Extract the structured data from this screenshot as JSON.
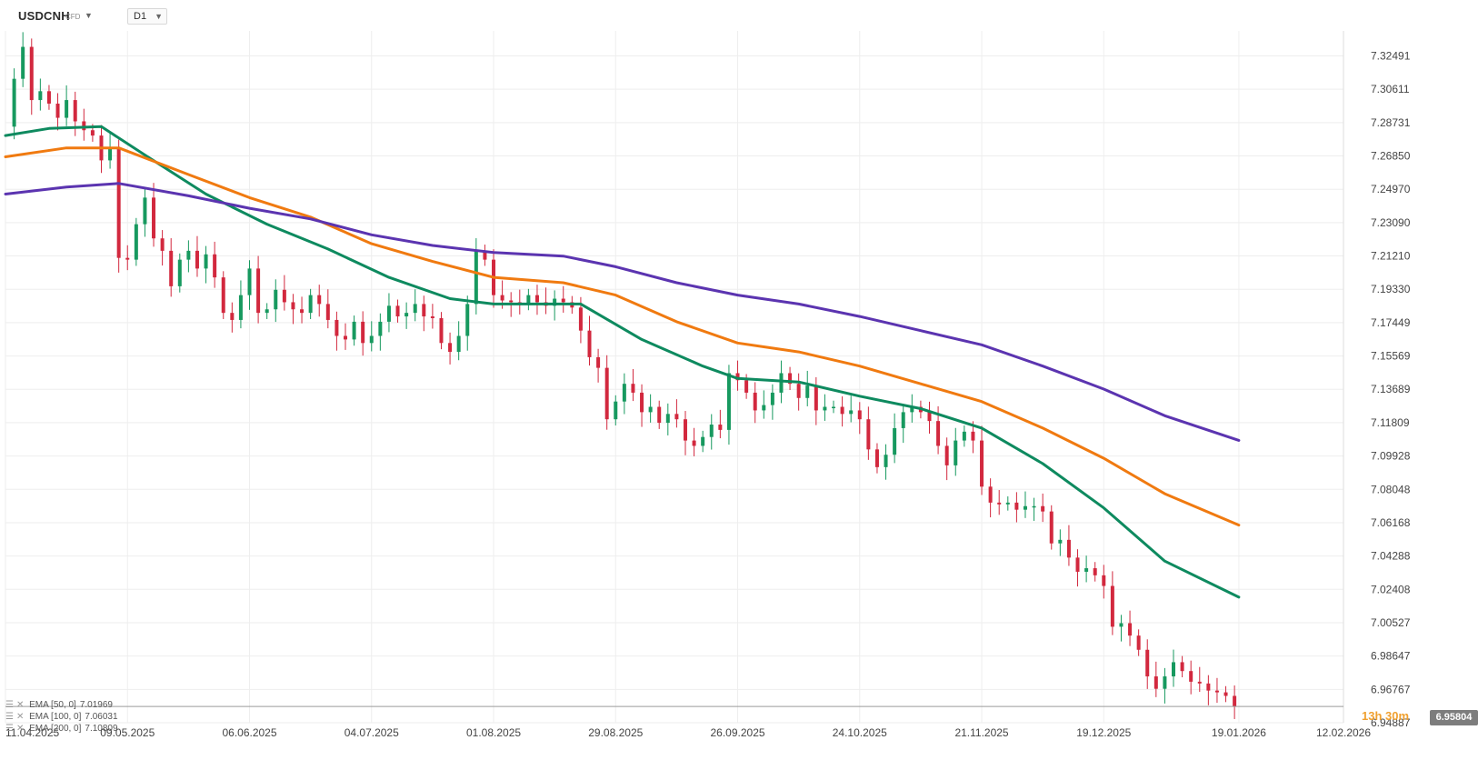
{
  "header": {
    "symbol": "USDCNH",
    "instrument_type": "CFD",
    "timeframe": "D1"
  },
  "countdown": "13h 30m",
  "current_price_label": "6.95804",
  "indicators": [
    {
      "label": "EMA [50, 0]",
      "value": "7.01969",
      "color": "#0e8a5f"
    },
    {
      "label": "EMA [100, 0]",
      "value": "7.06031",
      "color": "#f07a10"
    },
    {
      "label": "EMA [200, 0]",
      "value": "7.10809",
      "color": "#5b34b0"
    }
  ],
  "chart_data": {
    "type": "candlestick",
    "title": "",
    "xlabel": "",
    "ylabel": "",
    "ylim": [
      6.94887,
      7.339
    ],
    "xlim": [
      "2025-04-11",
      "2026-02-12"
    ],
    "x_tick_labels": [
      "11.04.2025",
      "09.05.2025",
      "06.06.2025",
      "04.07.2025",
      "01.08.2025",
      "29.08.2025",
      "26.09.2025",
      "24.10.2025",
      "21.11.2025",
      "19.12.2025",
      "19.01.2026",
      "12.02.2026"
    ],
    "x_tick_dates": [
      "2025-04-11",
      "2025-05-09",
      "2025-06-06",
      "2025-07-04",
      "2025-08-01",
      "2025-08-29",
      "2025-09-26",
      "2025-10-24",
      "2025-11-21",
      "2025-12-19",
      "2026-01-19",
      "2026-02-12"
    ],
    "y_tick_labels": [
      "7.32491",
      "7.30611",
      "7.28731",
      "7.26850",
      "7.24970",
      "7.23090",
      "7.21210",
      "7.19330",
      "7.17449",
      "7.15569",
      "7.13689",
      "7.11809",
      "7.09928",
      "7.08048",
      "7.06168",
      "7.04288",
      "7.02408",
      "7.00527",
      "6.98647",
      "6.96767",
      "6.94887"
    ],
    "grid": true,
    "last_price": 6.95804,
    "ohlc_close_path": [
      [
        "2025-04-11",
        7.285
      ],
      [
        "2025-04-13",
        7.312
      ],
      [
        "2025-04-15",
        7.33
      ],
      [
        "2025-04-17",
        7.3
      ],
      [
        "2025-04-19",
        7.305
      ],
      [
        "2025-04-21",
        7.298
      ],
      [
        "2025-04-23",
        7.29
      ],
      [
        "2025-04-25",
        7.3
      ],
      [
        "2025-04-27",
        7.288
      ],
      [
        "2025-04-29",
        7.283
      ],
      [
        "2025-05-01",
        7.28
      ],
      [
        "2025-05-03",
        7.266
      ],
      [
        "2025-05-05",
        7.273
      ],
      [
        "2025-05-07",
        7.211
      ],
      [
        "2025-05-09",
        7.21
      ],
      [
        "2025-05-11",
        7.23
      ],
      [
        "2025-05-13",
        7.245
      ],
      [
        "2025-05-15",
        7.222
      ],
      [
        "2025-05-17",
        7.215
      ],
      [
        "2025-05-19",
        7.195
      ],
      [
        "2025-05-21",
        7.21
      ],
      [
        "2025-05-23",
        7.215
      ],
      [
        "2025-05-25",
        7.205
      ],
      [
        "2025-05-27",
        7.213
      ],
      [
        "2025-05-29",
        7.2
      ],
      [
        "2025-05-31",
        7.18
      ],
      [
        "2025-06-02",
        7.176
      ],
      [
        "2025-06-04",
        7.19
      ],
      [
        "2025-06-06",
        7.205
      ],
      [
        "2025-06-08",
        7.18
      ],
      [
        "2025-06-10",
        7.182
      ],
      [
        "2025-06-12",
        7.193
      ],
      [
        "2025-06-14",
        7.186
      ],
      [
        "2025-06-16",
        7.182
      ],
      [
        "2025-06-18",
        7.18
      ],
      [
        "2025-06-20",
        7.19
      ],
      [
        "2025-06-22",
        7.185
      ],
      [
        "2025-06-24",
        7.176
      ],
      [
        "2025-06-26",
        7.167
      ],
      [
        "2025-06-28",
        7.165
      ],
      [
        "2025-06-30",
        7.175
      ],
      [
        "2025-07-02",
        7.163
      ],
      [
        "2025-07-04",
        7.167
      ],
      [
        "2025-07-06",
        7.175
      ],
      [
        "2025-07-08",
        7.184
      ],
      [
        "2025-07-10",
        7.178
      ],
      [
        "2025-07-12",
        7.18
      ],
      [
        "2025-07-14",
        7.185
      ],
      [
        "2025-07-16",
        7.178
      ],
      [
        "2025-07-18",
        7.177
      ],
      [
        "2025-07-20",
        7.163
      ],
      [
        "2025-07-22",
        7.158
      ],
      [
        "2025-07-24",
        7.167
      ],
      [
        "2025-07-26",
        7.185
      ],
      [
        "2025-07-28",
        7.215
      ],
      [
        "2025-07-30",
        7.21
      ],
      [
        "2025-08-01",
        7.19
      ],
      [
        "2025-08-03",
        7.187
      ],
      [
        "2025-08-05",
        7.186
      ],
      [
        "2025-08-07",
        7.185
      ],
      [
        "2025-08-09",
        7.19
      ],
      [
        "2025-08-11",
        7.186
      ],
      [
        "2025-08-13",
        7.184
      ],
      [
        "2025-08-15",
        7.188
      ],
      [
        "2025-08-17",
        7.186
      ],
      [
        "2025-08-19",
        7.183
      ],
      [
        "2025-08-21",
        7.17
      ],
      [
        "2025-08-23",
        7.155
      ],
      [
        "2025-08-25",
        7.149
      ],
      [
        "2025-08-27",
        7.12
      ],
      [
        "2025-08-29",
        7.13
      ],
      [
        "2025-08-31",
        7.14
      ],
      [
        "2025-09-02",
        7.135
      ],
      [
        "2025-09-04",
        7.124
      ],
      [
        "2025-09-06",
        7.127
      ],
      [
        "2025-09-08",
        7.118
      ],
      [
        "2025-09-10",
        7.123
      ],
      [
        "2025-09-12",
        7.12
      ],
      [
        "2025-09-14",
        7.108
      ],
      [
        "2025-09-16",
        7.105
      ],
      [
        "2025-09-18",
        7.11
      ],
      [
        "2025-09-20",
        7.117
      ],
      [
        "2025-09-22",
        7.114
      ],
      [
        "2025-09-24",
        7.146
      ],
      [
        "2025-09-26",
        7.142
      ],
      [
        "2025-09-28",
        7.135
      ],
      [
        "2025-09-30",
        7.125
      ],
      [
        "2025-10-02",
        7.128
      ],
      [
        "2025-10-04",
        7.135
      ],
      [
        "2025-10-06",
        7.146
      ],
      [
        "2025-10-08",
        7.14
      ],
      [
        "2025-10-10",
        7.132
      ],
      [
        "2025-10-12",
        7.139
      ],
      [
        "2025-10-14",
        7.125
      ],
      [
        "2025-10-16",
        7.127
      ],
      [
        "2025-10-18",
        7.127
      ],
      [
        "2025-10-20",
        7.123
      ],
      [
        "2025-10-22",
        7.125
      ],
      [
        "2025-10-24",
        7.12
      ],
      [
        "2025-10-26",
        7.103
      ],
      [
        "2025-10-28",
        7.093
      ],
      [
        "2025-10-30",
        7.1
      ],
      [
        "2025-11-01",
        7.115
      ],
      [
        "2025-11-03",
        7.124
      ],
      [
        "2025-11-05",
        7.127
      ],
      [
        "2025-11-07",
        7.124
      ],
      [
        "2025-11-09",
        7.119
      ],
      [
        "2025-11-11",
        7.105
      ],
      [
        "2025-11-13",
        7.094
      ],
      [
        "2025-11-15",
        7.108
      ],
      [
        "2025-11-17",
        7.113
      ],
      [
        "2025-11-19",
        7.108
      ],
      [
        "2025-11-21",
        7.082
      ],
      [
        "2025-11-23",
        7.073
      ],
      [
        "2025-11-25",
        7.072
      ],
      [
        "2025-11-27",
        7.073
      ],
      [
        "2025-11-29",
        7.069
      ],
      [
        "2025-12-01",
        7.071
      ],
      [
        "2025-12-03",
        7.071
      ],
      [
        "2025-12-05",
        7.068
      ],
      [
        "2025-12-07",
        7.05
      ],
      [
        "2025-12-09",
        7.052
      ],
      [
        "2025-12-11",
        7.042
      ],
      [
        "2025-12-13",
        7.034
      ],
      [
        "2025-12-15",
        7.036
      ],
      [
        "2025-12-17",
        7.032
      ],
      [
        "2025-12-19",
        7.026
      ],
      [
        "2025-12-21",
        7.003
      ],
      [
        "2025-12-23",
        7.005
      ],
      [
        "2025-12-25",
        6.998
      ],
      [
        "2025-12-27",
        6.99
      ],
      [
        "2025-12-29",
        6.975
      ],
      [
        "2025-12-31",
        6.968
      ],
      [
        "2026-01-02",
        6.975
      ],
      [
        "2026-01-04",
        6.983
      ],
      [
        "2026-01-06",
        6.978
      ],
      [
        "2026-01-08",
        6.972
      ],
      [
        "2026-01-10",
        6.971
      ],
      [
        "2026-01-12",
        6.967
      ],
      [
        "2026-01-14",
        6.966
      ],
      [
        "2026-01-16",
        6.964
      ],
      [
        "2026-01-18",
        6.95804
      ]
    ],
    "series": [
      {
        "name": "EMA [50, 0]",
        "color": "#0e8a5f",
        "points": [
          [
            "2025-04-11",
            7.28
          ],
          [
            "2025-04-21",
            7.284
          ],
          [
            "2025-05-03",
            7.285
          ],
          [
            "2025-05-13",
            7.269
          ],
          [
            "2025-05-27",
            7.247
          ],
          [
            "2025-06-10",
            7.23
          ],
          [
            "2025-06-24",
            7.216
          ],
          [
            "2025-07-08",
            7.2
          ],
          [
            "2025-07-22",
            7.188
          ],
          [
            "2025-08-01",
            7.185
          ],
          [
            "2025-08-21",
            7.185
          ],
          [
            "2025-09-04",
            7.165
          ],
          [
            "2025-09-18",
            7.15
          ],
          [
            "2025-09-26",
            7.143
          ],
          [
            "2025-10-10",
            7.141
          ],
          [
            "2025-10-24",
            7.133
          ],
          [
            "2025-11-07",
            7.126
          ],
          [
            "2025-11-21",
            7.115
          ],
          [
            "2025-12-05",
            7.095
          ],
          [
            "2025-12-19",
            7.07
          ],
          [
            "2026-01-02",
            7.04
          ],
          [
            "2026-01-19",
            7.01969
          ]
        ]
      },
      {
        "name": "EMA [100, 0]",
        "color": "#f07a10",
        "points": [
          [
            "2025-04-11",
            7.268
          ],
          [
            "2025-04-25",
            7.273
          ],
          [
            "2025-05-07",
            7.273
          ],
          [
            "2025-05-23",
            7.258
          ],
          [
            "2025-06-06",
            7.245
          ],
          [
            "2025-06-20",
            7.234
          ],
          [
            "2025-07-04",
            7.219
          ],
          [
            "2025-07-18",
            7.209
          ],
          [
            "2025-08-01",
            7.2
          ],
          [
            "2025-08-17",
            7.197
          ],
          [
            "2025-08-29",
            7.19
          ],
          [
            "2025-09-12",
            7.175
          ],
          [
            "2025-09-26",
            7.163
          ],
          [
            "2025-10-10",
            7.158
          ],
          [
            "2025-10-24",
            7.15
          ],
          [
            "2025-11-07",
            7.14
          ],
          [
            "2025-11-21",
            7.13
          ],
          [
            "2025-12-05",
            7.115
          ],
          [
            "2025-12-19",
            7.098
          ],
          [
            "2026-01-02",
            7.078
          ],
          [
            "2026-01-19",
            7.06031
          ]
        ]
      },
      {
        "name": "EMA [200, 0]",
        "color": "#5b34b0",
        "points": [
          [
            "2025-04-11",
            7.247
          ],
          [
            "2025-04-25",
            7.251
          ],
          [
            "2025-05-07",
            7.253
          ],
          [
            "2025-05-23",
            7.246
          ],
          [
            "2025-06-06",
            7.239
          ],
          [
            "2025-06-20",
            7.233
          ],
          [
            "2025-07-04",
            7.224
          ],
          [
            "2025-07-18",
            7.218
          ],
          [
            "2025-08-01",
            7.214
          ],
          [
            "2025-08-17",
            7.212
          ],
          [
            "2025-08-29",
            7.206
          ],
          [
            "2025-09-12",
            7.197
          ],
          [
            "2025-09-26",
            7.19
          ],
          [
            "2025-10-10",
            7.185
          ],
          [
            "2025-10-24",
            7.178
          ],
          [
            "2025-11-07",
            7.17
          ],
          [
            "2025-11-21",
            7.162
          ],
          [
            "2025-12-05",
            7.15
          ],
          [
            "2025-12-19",
            7.137
          ],
          [
            "2026-01-02",
            7.122
          ],
          [
            "2026-01-19",
            7.10809
          ]
        ]
      }
    ]
  }
}
